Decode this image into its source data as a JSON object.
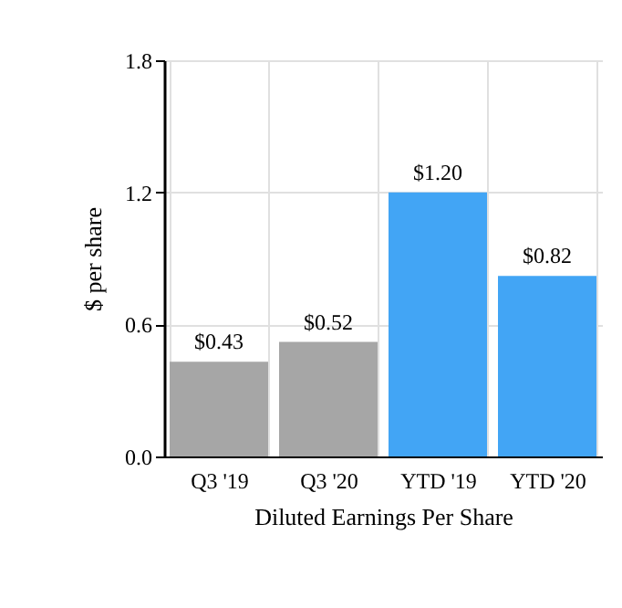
{
  "chart_data": {
    "type": "bar",
    "xlabel": "Diluted Earnings Per Share",
    "ylabel": "$ per share",
    "categories": [
      "Q3 '19",
      "Q3 '20",
      "YTD '19",
      "YTD '20"
    ],
    "values": [
      0.43,
      0.52,
      1.2,
      0.82
    ],
    "colors": [
      "#a6a6a6",
      "#a6a6a6",
      "#42a5f5",
      "#42a5f5"
    ],
    "value_labels": [
      "$0.43",
      "$0.52",
      "$1.20",
      "$0.82"
    ],
    "ylim": [
      0,
      1.8
    ],
    "yticks": [
      {
        "value": 0,
        "label": "0.0"
      },
      {
        "value": 0.6,
        "label": "0.6"
      },
      {
        "value": 1.2,
        "label": "1.2"
      },
      {
        "value": 1.8,
        "label": "1.8"
      }
    ],
    "grid": true
  }
}
